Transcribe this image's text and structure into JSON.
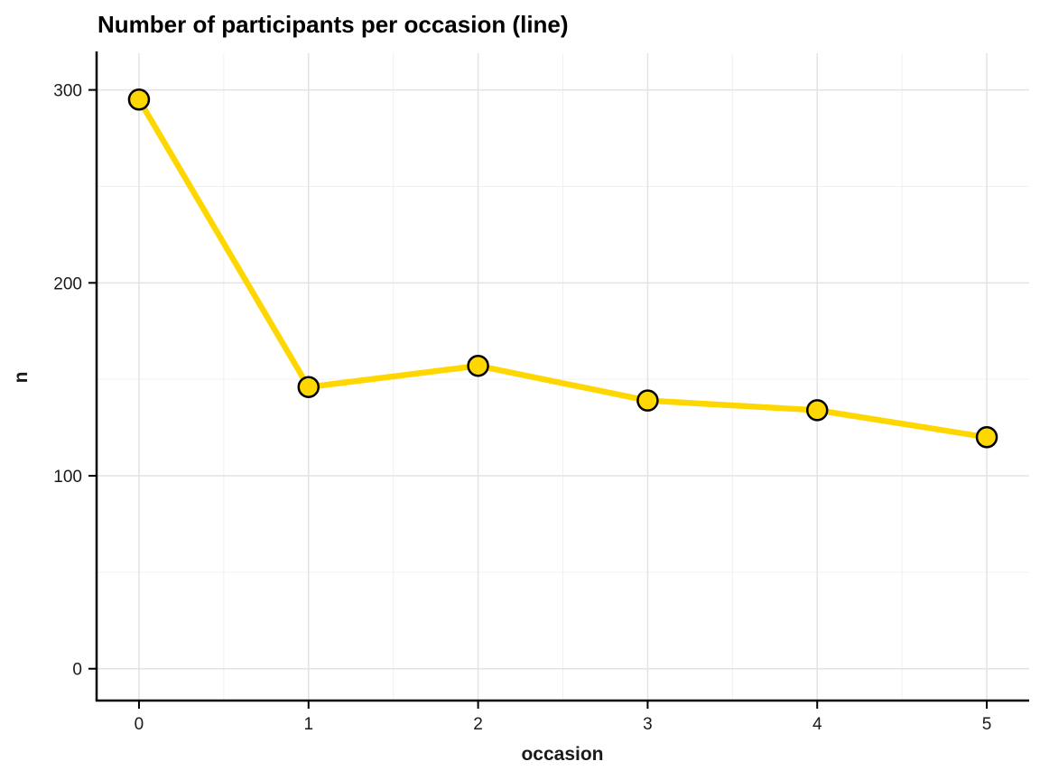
{
  "chart_data": {
    "type": "line",
    "title": "Number of participants per occasion (line)",
    "xlabel": "occasion",
    "ylabel": "n",
    "x": [
      0,
      1,
      2,
      3,
      4,
      5
    ],
    "values": [
      295,
      146,
      157,
      139,
      134,
      120
    ],
    "series_name": "participants",
    "x_ticks": [
      0,
      1,
      2,
      3,
      4,
      5
    ],
    "y_ticks": [
      0,
      100,
      200,
      300
    ],
    "x_minor": [
      0.5,
      1.5,
      2.5,
      3.5,
      4.5
    ],
    "y_minor": [
      50,
      150,
      250
    ],
    "xlim": [
      -0.25,
      5.25
    ],
    "ylim": [
      -16.5,
      319
    ],
    "grid": "on",
    "legend": "none",
    "colors": {
      "line": "#FFD700",
      "point_fill": "#FFD700",
      "point_stroke": "#000000",
      "grid_major": "#E3E3E3",
      "grid_minor": "#F0F0F0",
      "axis": "#000000",
      "tick_text": "#1a1a1a",
      "background": "#FFFFFF"
    }
  }
}
